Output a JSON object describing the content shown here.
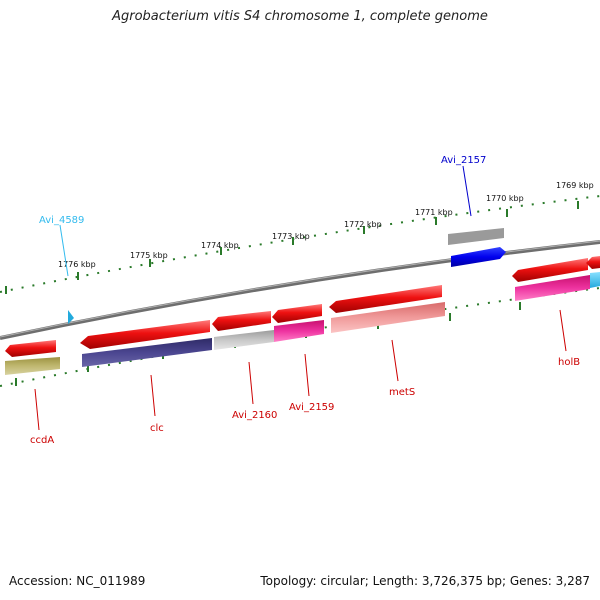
{
  "title": "Agrobacterium vitis S4 chromosome 1, complete genome",
  "accession": "Accession: NC_011989",
  "info": "Topology: circular; Length: 3,726,375 bp; Genes: 3,287",
  "ticks": [
    {
      "label": "1776 kbp"
    },
    {
      "label": "1775 kbp"
    },
    {
      "label": "1774 kbp"
    },
    {
      "label": "1773 kbp"
    },
    {
      "label": "1772 kbp"
    },
    {
      "label": "1771 kbp"
    },
    {
      "label": "1770 kbp"
    },
    {
      "label": "1769 kbp"
    }
  ],
  "gene_labels": [
    {
      "id": "Avi_4589",
      "text": "Avi_4589",
      "color": "#33bbee"
    },
    {
      "id": "Avi_2157",
      "text": "Avi_2157",
      "color": "#0000cc"
    },
    {
      "id": "ccdA",
      "text": "ccdA",
      "color": "#cc0000"
    },
    {
      "id": "clc",
      "text": "clc",
      "color": "#cc0000"
    },
    {
      "id": "Avi_2160",
      "text": "Avi_2160",
      "color": "#cc0000"
    },
    {
      "id": "Avi_2159",
      "text": "Avi_2159",
      "color": "#cc0000"
    },
    {
      "id": "metS",
      "text": "metS",
      "color": "#cc0000"
    },
    {
      "id": "holB",
      "text": "holB",
      "color": "#cc0000"
    }
  ],
  "colors": {
    "cds": "#ee1111",
    "backbone": "#888888",
    "tick": "#2a7a2a"
  }
}
